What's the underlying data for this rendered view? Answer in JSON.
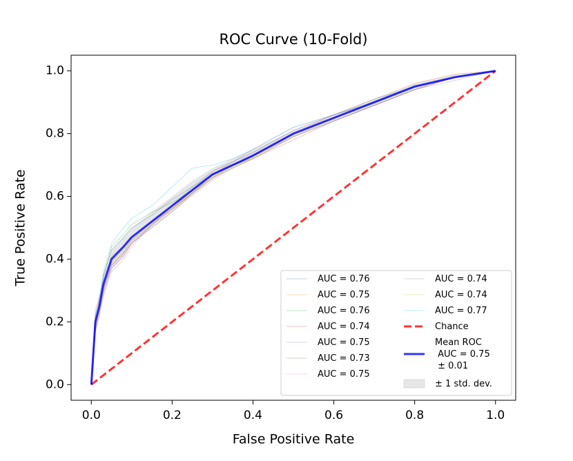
{
  "chart_data": {
    "type": "line",
    "title": "ROC Curve (10-Fold)",
    "x_label": "False Positive Rate",
    "y_label": "True Positive Rate",
    "x": [
      0,
      0.01,
      0.02,
      0.03,
      0.05,
      0.08,
      0.1,
      0.15,
      0.2,
      0.25,
      0.3,
      0.35,
      0.4,
      0.5,
      0.6,
      0.7,
      0.8,
      0.9,
      1.0
    ],
    "series": [
      {
        "name": "AUC = 0.76",
        "color": "#1f77b4",
        "alpha": 0.3,
        "linewidth": 1,
        "values": [
          0,
          0.22,
          0.27,
          0.35,
          0.43,
          0.47,
          0.5,
          0.54,
          0.59,
          0.63,
          0.68,
          0.71,
          0.74,
          0.81,
          0.86,
          0.91,
          0.95,
          0.98,
          1
        ]
      },
      {
        "name": "AUC = 0.75",
        "color": "#ff7f0e",
        "alpha": 0.3,
        "linewidth": 1,
        "values": [
          0,
          0.24,
          0.28,
          0.33,
          0.41,
          0.44,
          0.47,
          0.52,
          0.56,
          0.61,
          0.66,
          0.7,
          0.73,
          0.8,
          0.86,
          0.91,
          0.96,
          0.99,
          1
        ]
      },
      {
        "name": "AUC = 0.76",
        "color": "#2ca02c",
        "alpha": 0.3,
        "linewidth": 1,
        "values": [
          0,
          0.19,
          0.26,
          0.34,
          0.44,
          0.48,
          0.51,
          0.55,
          0.58,
          0.62,
          0.67,
          0.7,
          0.73,
          0.8,
          0.85,
          0.9,
          0.95,
          0.98,
          1
        ]
      },
      {
        "name": "AUC = 0.74",
        "color": "#d62728",
        "alpha": 0.3,
        "linewidth": 1,
        "values": [
          0,
          0.18,
          0.24,
          0.3,
          0.38,
          0.42,
          0.45,
          0.51,
          0.56,
          0.61,
          0.66,
          0.69,
          0.72,
          0.79,
          0.84,
          0.89,
          0.94,
          0.98,
          1
        ]
      },
      {
        "name": "AUC = 0.75",
        "color": "#9467bd",
        "alpha": 0.3,
        "linewidth": 1,
        "values": [
          0,
          0.2,
          0.25,
          0.31,
          0.38,
          0.42,
          0.46,
          0.52,
          0.57,
          0.62,
          0.67,
          0.71,
          0.75,
          0.82,
          0.86,
          0.9,
          0.95,
          0.98,
          1
        ]
      },
      {
        "name": "AUC = 0.73",
        "color": "#8c564b",
        "alpha": 0.3,
        "linewidth": 1,
        "values": [
          0,
          0.17,
          0.22,
          0.29,
          0.37,
          0.41,
          0.45,
          0.5,
          0.55,
          0.61,
          0.67,
          0.7,
          0.72,
          0.78,
          0.84,
          0.89,
          0.94,
          0.98,
          1
        ]
      },
      {
        "name": "AUC = 0.75",
        "color": "#e377c2",
        "alpha": 0.3,
        "linewidth": 1,
        "values": [
          0,
          0.21,
          0.25,
          0.31,
          0.37,
          0.41,
          0.45,
          0.51,
          0.56,
          0.62,
          0.68,
          0.71,
          0.74,
          0.81,
          0.86,
          0.9,
          0.95,
          0.98,
          1
        ]
      },
      {
        "name": "AUC = 0.74",
        "color": "#7f7f7f",
        "alpha": 0.3,
        "linewidth": 1,
        "values": [
          0,
          0.17,
          0.23,
          0.28,
          0.36,
          0.4,
          0.44,
          0.51,
          0.57,
          0.63,
          0.67,
          0.7,
          0.73,
          0.79,
          0.84,
          0.89,
          0.94,
          0.97,
          1
        ]
      },
      {
        "name": "AUC = 0.74",
        "color": "#bcbd22",
        "alpha": 0.3,
        "linewidth": 1,
        "values": [
          0,
          0.19,
          0.24,
          0.31,
          0.39,
          0.43,
          0.46,
          0.51,
          0.56,
          0.61,
          0.66,
          0.69,
          0.72,
          0.79,
          0.85,
          0.9,
          0.95,
          0.98,
          1
        ]
      },
      {
        "name": "AUC = 0.77",
        "color": "#17becf",
        "alpha": 0.3,
        "linewidth": 1,
        "values": [
          0,
          0.22,
          0.28,
          0.36,
          0.45,
          0.5,
          0.53,
          0.57,
          0.63,
          0.69,
          0.7,
          0.72,
          0.75,
          0.82,
          0.86,
          0.9,
          0.95,
          0.98,
          1
        ]
      },
      {
        "name": "Chance",
        "color": "#ff0000",
        "alpha": 0.8,
        "linewidth": 3,
        "linestyle": "dashed",
        "values": [
          0,
          0.01,
          0.02,
          0.03,
          0.05,
          0.08,
          0.1,
          0.15,
          0.2,
          0.25,
          0.3,
          0.35,
          0.4,
          0.5,
          0.6,
          0.7,
          0.8,
          0.9,
          1.0
        ]
      },
      {
        "name": "Mean ROC\n AUC = 0.75\n ± 0.01",
        "color": "#0000ff",
        "alpha": 0.8,
        "linewidth": 3,
        "values": [
          0,
          0.2,
          0.25,
          0.32,
          0.4,
          0.44,
          0.47,
          0.52,
          0.57,
          0.62,
          0.67,
          0.7,
          0.73,
          0.8,
          0.85,
          0.9,
          0.95,
          0.98,
          1
        ]
      }
    ],
    "band": {
      "name": "± 1 std. dev.",
      "color": "#808080",
      "alpha": 0.2,
      "lower": [
        0,
        0.17,
        0.22,
        0.29,
        0.37,
        0.41,
        0.45,
        0.5,
        0.55,
        0.6,
        0.65,
        0.69,
        0.72,
        0.79,
        0.84,
        0.89,
        0.94,
        0.98,
        1
      ],
      "upper": [
        0,
        0.23,
        0.28,
        0.35,
        0.43,
        0.47,
        0.5,
        0.55,
        0.6,
        0.65,
        0.69,
        0.72,
        0.75,
        0.81,
        0.86,
        0.91,
        0.96,
        0.99,
        1
      ]
    },
    "xlim": [
      -0.05,
      1.05
    ],
    "ylim": [
      -0.05,
      1.05
    ],
    "xticks": [
      {
        "value": 0,
        "label": "0.0"
      },
      0.2,
      0.4,
      0.6,
      0.8,
      {
        "value": 1,
        "label": "1.0"
      }
    ],
    "yticks": [
      {
        "value": 0,
        "label": "0.0"
      },
      0.2,
      0.4,
      0.6,
      0.8,
      {
        "value": 1,
        "label": "1.0"
      }
    ]
  }
}
